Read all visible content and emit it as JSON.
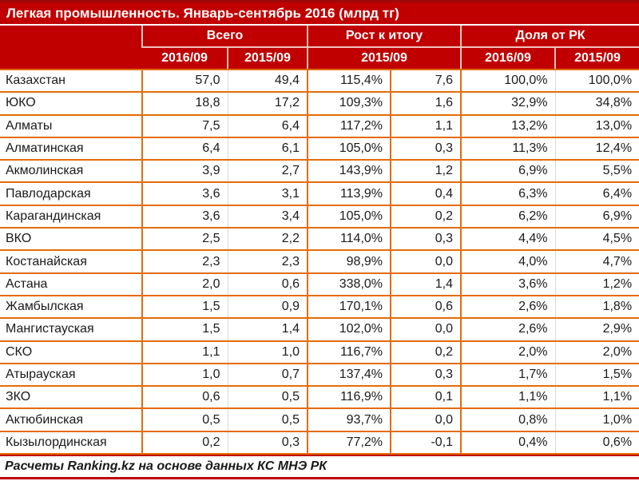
{
  "title": "Легкая промышленность. Январь-сентябрь 2016 (млрд тг)",
  "header": {
    "group_total": "Всего",
    "group_growth": "Рост к итогу",
    "group_share": "Доля от РК",
    "sub_total_2016": "2016/09",
    "sub_total_2015": "2015/09",
    "sub_growth_2015": "2015/09",
    "sub_share_2016": "2016/09",
    "sub_share_2015": "2015/09"
  },
  "footer": {
    "text": "Расчеты Ranking.kz на основе данных КС МНЭ РК"
  },
  "colors": {
    "header_bg": "#C00000",
    "header_divider": "#EEC5BD",
    "border_orange": "#E36C09",
    "border_gray": "#D9D9D9",
    "text": "#1A1A1A",
    "header_text": "#FFFFFF"
  },
  "chart_data": {
    "type": "table",
    "title": "Легкая промышленность. Январь-сентябрь 2016 (млрд тг)",
    "column_groups": [
      "",
      "Всего",
      "Рост к итогу",
      "Доля от РК"
    ],
    "column_subheaders": [
      "",
      "2016/09",
      "2015/09",
      "2015/09",
      "2015/09",
      "2016/09",
      "2015/09"
    ],
    "rows": [
      {
        "region": "Казахстан",
        "total_2016_09": "57,0",
        "total_2015_09": "49,4",
        "growth_pct": "115,4%",
        "growth_abs": "7,6",
        "share_2016_09": "100,0%",
        "share_2015_09": "100,0%"
      },
      {
        "region": "ЮКО",
        "total_2016_09": "18,8",
        "total_2015_09": "17,2",
        "growth_pct": "109,3%",
        "growth_abs": "1,6",
        "share_2016_09": "32,9%",
        "share_2015_09": "34,8%"
      },
      {
        "region": "Алматы",
        "total_2016_09": "7,5",
        "total_2015_09": "6,4",
        "growth_pct": "117,2%",
        "growth_abs": "1,1",
        "share_2016_09": "13,2%",
        "share_2015_09": "13,0%"
      },
      {
        "region": "Алматинская",
        "total_2016_09": "6,4",
        "total_2015_09": "6,1",
        "growth_pct": "105,0%",
        "growth_abs": "0,3",
        "share_2016_09": "11,3%",
        "share_2015_09": "12,4%"
      },
      {
        "region": "Акмолинская",
        "total_2016_09": "3,9",
        "total_2015_09": "2,7",
        "growth_pct": "143,9%",
        "growth_abs": "1,2",
        "share_2016_09": "6,9%",
        "share_2015_09": "5,5%"
      },
      {
        "region": "Павлодарская",
        "total_2016_09": "3,6",
        "total_2015_09": "3,1",
        "growth_pct": "113,9%",
        "growth_abs": "0,4",
        "share_2016_09": "6,3%",
        "share_2015_09": "6,4%"
      },
      {
        "region": "Карагандинская",
        "total_2016_09": "3,6",
        "total_2015_09": "3,4",
        "growth_pct": "105,0%",
        "growth_abs": "0,2",
        "share_2016_09": "6,2%",
        "share_2015_09": "6,9%"
      },
      {
        "region": "ВКО",
        "total_2016_09": "2,5",
        "total_2015_09": "2,2",
        "growth_pct": "114,0%",
        "growth_abs": "0,3",
        "share_2016_09": "4,4%",
        "share_2015_09": "4,5%"
      },
      {
        "region": "Костанайская",
        "total_2016_09": "2,3",
        "total_2015_09": "2,3",
        "growth_pct": "98,9%",
        "growth_abs": "0,0",
        "share_2016_09": "4,0%",
        "share_2015_09": "4,7%"
      },
      {
        "region": "Астана",
        "total_2016_09": "2,0",
        "total_2015_09": "0,6",
        "growth_pct": "338,0%",
        "growth_abs": "1,4",
        "share_2016_09": "3,6%",
        "share_2015_09": "1,2%"
      },
      {
        "region": "Жамбылская",
        "total_2016_09": "1,5",
        "total_2015_09": "0,9",
        "growth_pct": "170,1%",
        "growth_abs": "0,6",
        "share_2016_09": "2,6%",
        "share_2015_09": "1,8%"
      },
      {
        "region": "Мангистауская",
        "total_2016_09": "1,5",
        "total_2015_09": "1,4",
        "growth_pct": "102,0%",
        "growth_abs": "0,0",
        "share_2016_09": "2,6%",
        "share_2015_09": "2,9%"
      },
      {
        "region": "СКО",
        "total_2016_09": "1,1",
        "total_2015_09": "1,0",
        "growth_pct": "116,7%",
        "growth_abs": "0,2",
        "share_2016_09": "2,0%",
        "share_2015_09": "2,0%"
      },
      {
        "region": "Атырауская",
        "total_2016_09": "1,0",
        "total_2015_09": "0,7",
        "growth_pct": "137,4%",
        "growth_abs": "0,3",
        "share_2016_09": "1,7%",
        "share_2015_09": "1,5%"
      },
      {
        "region": "ЗКО",
        "total_2016_09": "0,6",
        "total_2015_09": "0,5",
        "growth_pct": "116,9%",
        "growth_abs": "0,1",
        "share_2016_09": "1,1%",
        "share_2015_09": "1,1%"
      },
      {
        "region": "Актюбинская",
        "total_2016_09": "0,5",
        "total_2015_09": "0,5",
        "growth_pct": "93,7%",
        "growth_abs": "0,0",
        "share_2016_09": "0,8%",
        "share_2015_09": "1,0%"
      },
      {
        "region": "Кызылординская",
        "total_2016_09": "0,2",
        "total_2015_09": "0,3",
        "growth_pct": "77,2%",
        "growth_abs": "-0,1",
        "share_2016_09": "0,4%",
        "share_2015_09": "0,6%"
      }
    ]
  }
}
